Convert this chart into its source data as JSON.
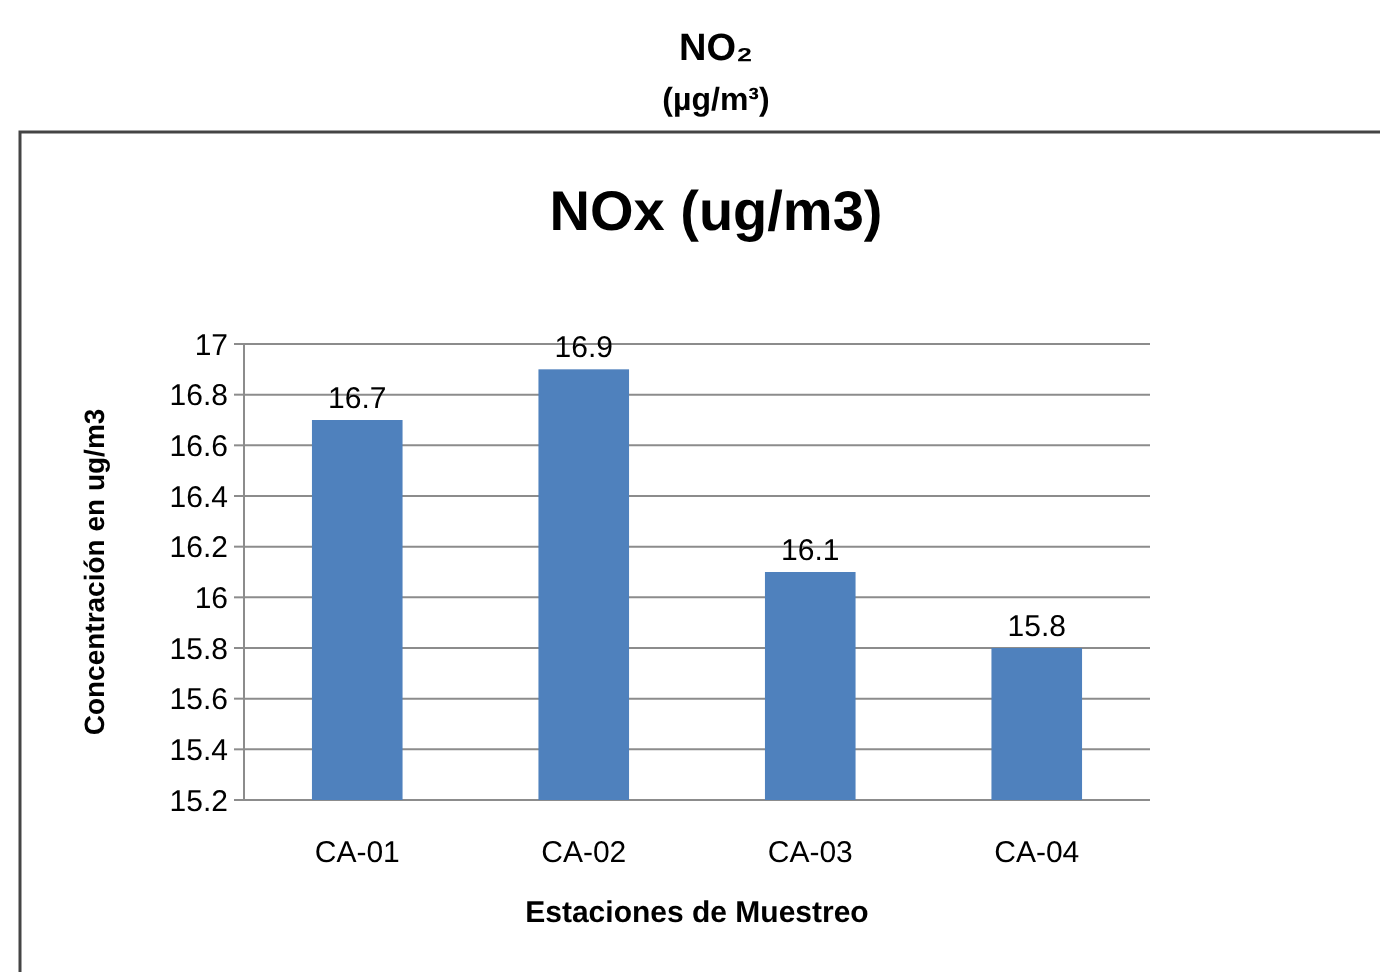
{
  "chart_data": {
    "type": "bar",
    "title": "NOx (ug/m3)",
    "annotations": [
      "NO₂",
      "(µg/m³)"
    ],
    "xlabel": "Estaciones de Muestreo",
    "ylabel": "Concentración en ug/m3",
    "categories": [
      "CA-01",
      "CA-02",
      "CA-03",
      "CA-04"
    ],
    "values": [
      16.7,
      16.9,
      16.1,
      15.8
    ],
    "color": "#4f81bd",
    "ylim": [
      15.2,
      17
    ],
    "yticks": [
      15.2,
      15.4,
      15.6,
      15.8,
      16,
      16.2,
      16.4,
      16.6,
      16.8,
      17
    ],
    "grid": "y",
    "data_labels": true
  }
}
